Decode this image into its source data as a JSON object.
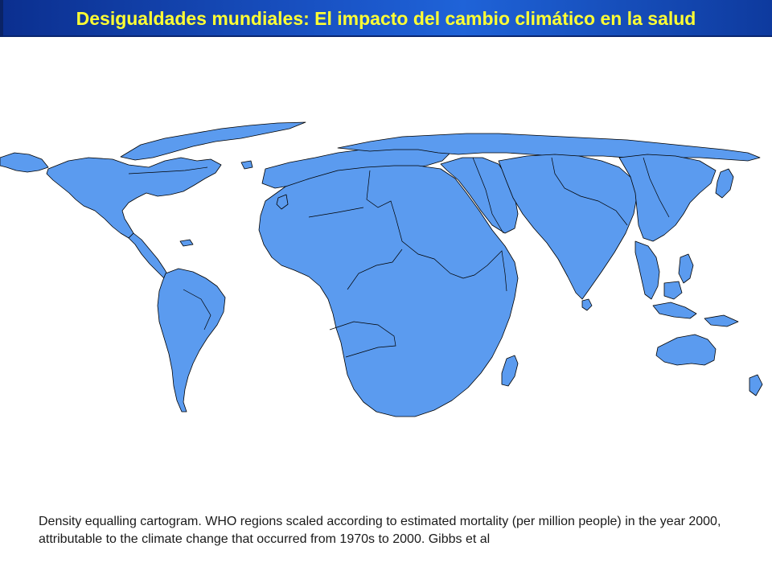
{
  "slide": {
    "title": "Desigualdades mundiales: El impacto del cambio climático en la salud",
    "caption": "Density equalling cartogram. WHO regions scaled according to estimated mortality (per million people) in the year 2000, attributable to the climate change that occurred from 1970s to 2000.  Gibbs et al"
  },
  "map": {
    "land_color": "#5b9bef",
    "border_color": "#000000",
    "background_color": "#ffffff"
  },
  "colors": {
    "title_text": "#ffff33",
    "title_bar": "#1a55c8"
  }
}
